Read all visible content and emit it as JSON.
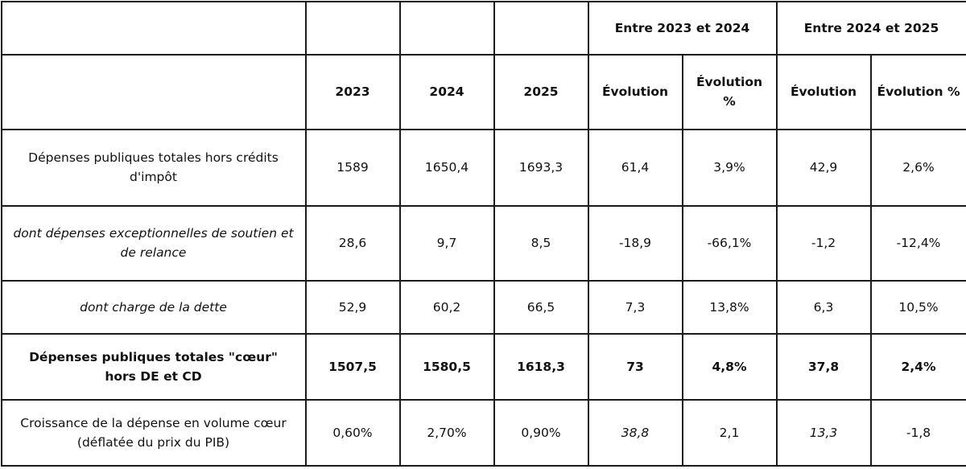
{
  "header": {
    "group_2023_2024": "Entre 2023 et 2024",
    "group_2024_2025": "Entre 2024 et 2025",
    "col_2023": "2023",
    "col_2024": "2024",
    "col_2025": "2025",
    "evol_2324": "Évolution",
    "evol_pct_2324": "Évolution %",
    "evol_2425": "Évolution",
    "evol_pct_2425": "Évolution %"
  },
  "rows": [
    {
      "label": "Dépenses publiques totales hors crédits d'impôt",
      "v2023": "1589",
      "v2024": "1650,4",
      "v2025": "1693,3",
      "evol_2324": "61,4",
      "pct_2324": "3,9%",
      "evol_2425": "42,9",
      "pct_2425": "2,6%"
    },
    {
      "label": "dont dépenses exceptionnelles de soutien et de relance",
      "v2023": "28,6",
      "v2024": "9,7",
      "v2025": "8,5",
      "evol_2324": "-18,9",
      "pct_2324": "-66,1%",
      "evol_2425": "-1,2",
      "pct_2425": "-12,4%"
    },
    {
      "label": "dont charge de la dette",
      "v2023": "52,9",
      "v2024": "60,2",
      "v2025": "66,5",
      "evol_2324": "7,3",
      "pct_2324": "13,8%",
      "evol_2425": "6,3",
      "pct_2425": "10,5%"
    },
    {
      "label": "Dépenses publiques totales \"cœur\" hors DE et CD",
      "v2023": "1507,5",
      "v2024": "1580,5",
      "v2025": "1618,3",
      "evol_2324": "73",
      "pct_2324": "4,8%",
      "evol_2425": "37,8",
      "pct_2425": "2,4%"
    },
    {
      "label": "Croissance de la dépense en volume cœur (déflatée du prix du PIB)",
      "v2023": "0,60%",
      "v2024": "2,70%",
      "v2025": "0,90%",
      "evol_2324": "38,8",
      "pct_2324": "2,1",
      "evol_2425": "13,3",
      "pct_2425": "-1,8"
    }
  ]
}
